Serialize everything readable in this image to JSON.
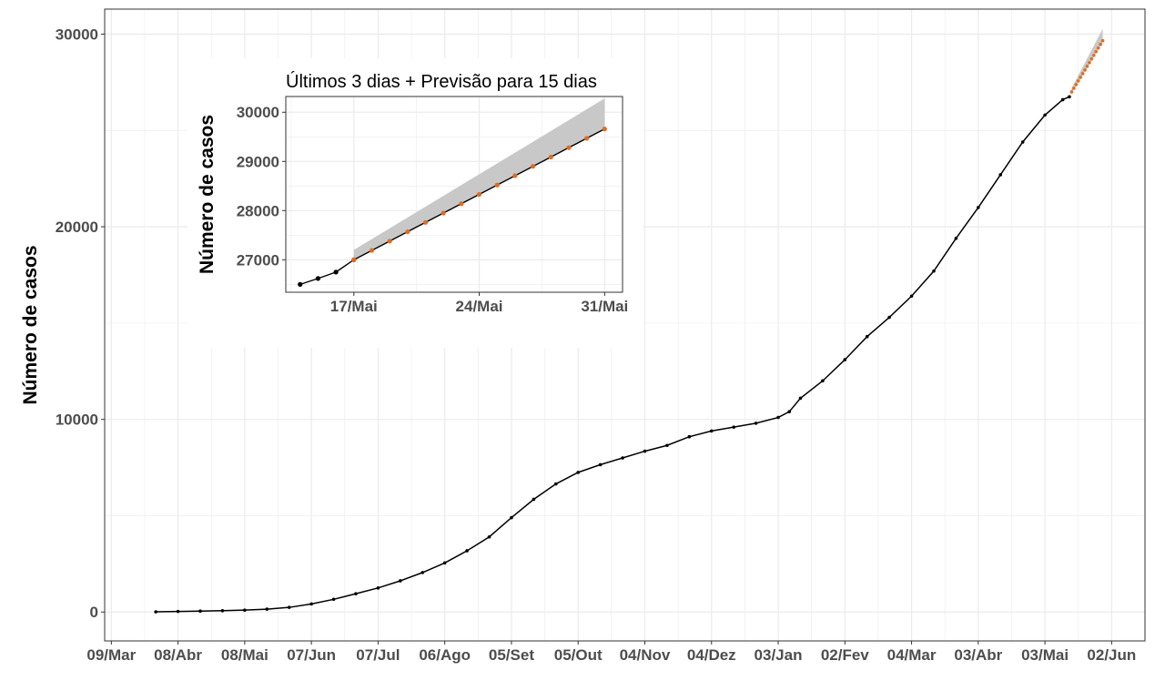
{
  "chart_data": [
    {
      "type": "line",
      "title": "",
      "ylabel": "Número de casos",
      "xlabel": "",
      "ylim": [
        -1500,
        31300
      ],
      "yticks": [
        0,
        10000,
        20000,
        30000
      ],
      "x_tick_labels": [
        "09/Mar",
        "08/Abr",
        "08/Mai",
        "07/Jun",
        "07/Jul",
        "06/Ago",
        "05/Set",
        "05/Out",
        "04/Nov",
        "04/Dez",
        "03/Jan",
        "02/Fev",
        "04/Mar",
        "03/Abr",
        "03/Mai",
        "02/Jun"
      ],
      "x_tick_day_index": [
        0,
        30,
        60,
        90,
        120,
        150,
        180,
        210,
        240,
        270,
        300,
        330,
        360,
        390,
        420,
        450
      ],
      "xlim_day_index": [
        -3,
        465
      ],
      "grid": true,
      "colors": {
        "observed": "#000000",
        "forecast": "#e06c1f",
        "band": "#c8c8c8",
        "grid": "#ebebeb"
      },
      "series": [
        {
          "x_day_index": [
            20,
            30,
            40,
            50,
            60,
            70,
            80,
            90,
            100,
            110,
            120,
            130,
            140,
            150,
            160,
            170,
            180,
            190,
            200,
            210,
            220,
            230,
            240,
            250,
            260,
            270,
            280,
            290,
            300,
            305,
            310,
            320,
            330,
            340,
            350,
            360,
            370,
            380,
            390,
            400,
            410,
            420,
            428,
            431
          ],
          "y": [
            10,
            30,
            50,
            70,
            100,
            150,
            240,
            420,
            660,
            950,
            1250,
            1620,
            2050,
            2550,
            3180,
            3900,
            4900,
            5850,
            6650,
            7250,
            7650,
            8000,
            8350,
            8650,
            9100,
            9400,
            9600,
            9800,
            10100,
            10400,
            11100,
            12000,
            13100,
            14300,
            15300,
            16400,
            17700,
            19400,
            21000,
            22700,
            24400,
            25800,
            26600,
            26750
          ]
        },
        {
          "x_day_index": [
            432,
            433,
            434,
            435,
            436,
            437,
            438,
            439,
            440,
            441,
            442,
            443,
            444,
            445,
            446
          ],
          "y": [
            27000,
            27190,
            27380,
            27570,
            27760,
            27950,
            28140,
            28330,
            28520,
            28710,
            28900,
            29090,
            29280,
            29470,
            29660
          ],
          "band_lower": [
            27000,
            27190,
            27380,
            27570,
            27760,
            27950,
            28140,
            28330,
            28520,
            28710,
            28900,
            29090,
            29280,
            29470,
            29660
          ],
          "band_upper": [
            27200,
            27420,
            27640,
            27860,
            28080,
            28300,
            28520,
            28740,
            28960,
            29180,
            29400,
            29620,
            29840,
            30060,
            30280
          ]
        }
      ]
    },
    {
      "type": "line",
      "title": "Últimos 3 dias + Previsão para 15 dias",
      "ylabel": "Número de casos",
      "xlabel": "",
      "ylim": [
        26340,
        30320
      ],
      "yticks": [
        27000,
        28000,
        29000,
        30000
      ],
      "x_tick_labels": [
        "17/Mai",
        "24/Mai",
        "31/Mai"
      ],
      "x_tick_day_index": [
        3,
        10,
        17
      ],
      "xlim_day_index": [
        -0.8,
        18
      ],
      "grid": true,
      "series": [
        {
          "x_day_index": [
            0,
            1,
            2,
            3
          ],
          "y": [
            26500,
            26620,
            26750,
            27000
          ]
        },
        {
          "x_day_index": [
            3,
            4,
            5,
            6,
            7,
            8,
            9,
            10,
            11,
            12,
            13,
            14,
            15,
            16,
            17
          ],
          "y": [
            27000,
            27190,
            27380,
            27570,
            27760,
            27950,
            28140,
            28330,
            28520,
            28710,
            28900,
            29090,
            29280,
            29470,
            29660
          ],
          "band_lower": [
            27000,
            27190,
            27380,
            27570,
            27760,
            27950,
            28140,
            28330,
            28520,
            28710,
            28900,
            29090,
            29280,
            29470,
            29660
          ],
          "band_upper": [
            27200,
            27420,
            27640,
            27860,
            28080,
            28300,
            28520,
            28740,
            28960,
            29180,
            29400,
            29620,
            29840,
            30060,
            30280
          ]
        }
      ]
    }
  ]
}
